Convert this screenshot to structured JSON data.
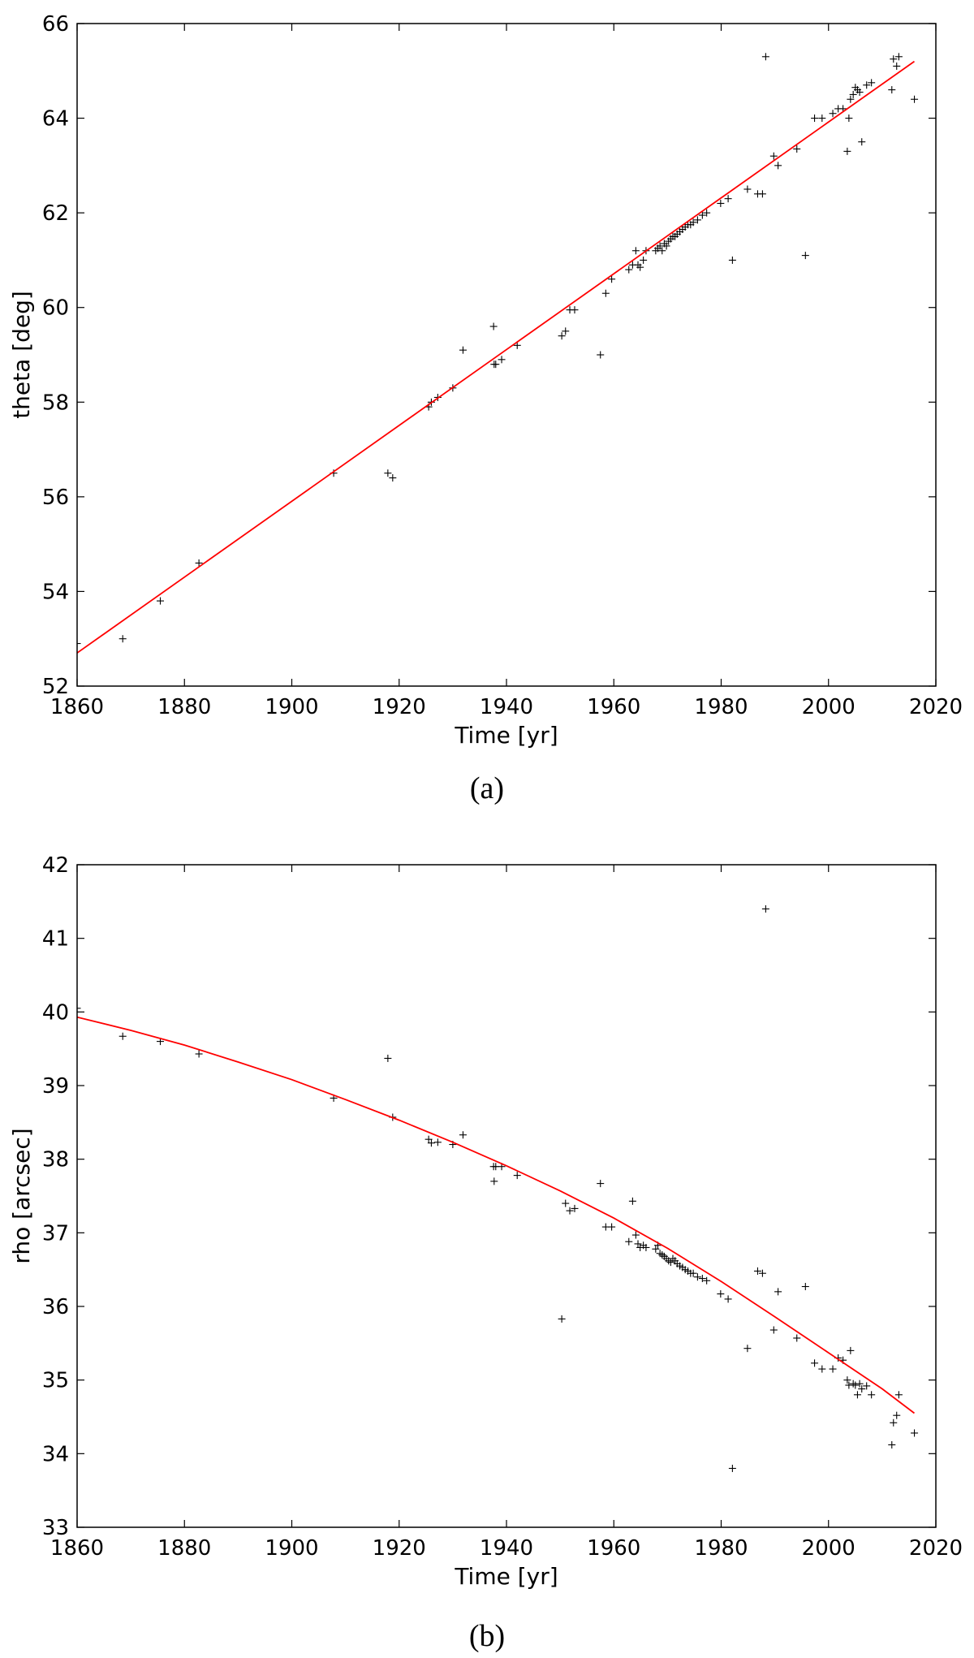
{
  "chart_data": [
    {
      "type": "scatter",
      "caption": "(a)",
      "xlabel": "Time [yr]",
      "ylabel": "theta [deg]",
      "xlim": [
        1860,
        2020
      ],
      "ylim": [
        52,
        66
      ],
      "xticks": [
        "1860",
        "1880",
        "1900",
        "1920",
        "1940",
        "1960",
        "1980",
        "2000",
        "2020"
      ],
      "yticks": [
        "52",
        "54",
        "56",
        "58",
        "60",
        "62",
        "64",
        "66"
      ],
      "grid": false,
      "fit_color": "#ff0000",
      "marker_color": "#000000",
      "series": [
        {
          "kind": "points",
          "marker": "+",
          "x": [
            1860.0,
            1868.5,
            1875.5,
            1882.7,
            1907.8,
            1917.9,
            1918.8,
            1925.5,
            1926.0,
            1927.2,
            1930.0,
            1931.9,
            1937.6,
            1937.7,
            1938.0,
            1939.1,
            1942.0,
            1950.3,
            1951.0,
            1951.8,
            1952.7,
            1957.5,
            1958.5,
            1959.6,
            1962.8,
            1963.5,
            1964.1,
            1964.5,
            1964.9,
            1965.5,
            1966.0,
            1967.8,
            1968.2,
            1968.6,
            1969.0,
            1969.4,
            1969.8,
            1970.2,
            1970.6,
            1971.0,
            1971.4,
            1971.8,
            1972.3,
            1972.8,
            1973.3,
            1973.8,
            1974.3,
            1974.8,
            1975.6,
            1976.5,
            1977.3,
            1979.9,
            1981.3,
            1982.1,
            1984.9,
            1986.8,
            1987.7,
            1988.3,
            1989.8,
            1990.6,
            1994.1,
            1995.7,
            1997.4,
            1998.8,
            2000.8,
            2001.8,
            2002.7,
            2003.5,
            2003.8,
            2004.1,
            2004.6,
            2005.0,
            2005.4,
            2005.8,
            2006.2,
            2007.1,
            2008.0,
            2011.8,
            2012.1,
            2012.7,
            2013.1,
            2016.0
          ],
          "y": [
            52.9,
            53.0,
            53.8,
            54.6,
            56.5,
            56.5,
            56.4,
            57.9,
            58.0,
            58.1,
            58.3,
            59.1,
            59.6,
            58.8,
            58.8,
            58.9,
            59.2,
            59.4,
            59.5,
            59.95,
            59.95,
            59.0,
            60.3,
            60.6,
            60.8,
            60.9,
            61.2,
            60.9,
            60.85,
            61.0,
            61.2,
            61.2,
            61.25,
            61.3,
            61.2,
            61.35,
            61.3,
            61.4,
            61.45,
            61.5,
            61.5,
            61.55,
            61.6,
            61.65,
            61.7,
            61.75,
            61.75,
            61.8,
            61.85,
            61.95,
            62.0,
            62.2,
            62.3,
            61.0,
            62.5,
            62.4,
            62.4,
            65.3,
            63.2,
            63.0,
            63.35,
            61.1,
            64.0,
            64.0,
            64.1,
            64.2,
            64.2,
            63.3,
            64.0,
            64.4,
            64.5,
            64.65,
            64.6,
            64.55,
            63.5,
            64.7,
            64.75,
            64.6,
            65.25,
            65.1,
            65.3,
            64.4
          ]
        },
        {
          "kind": "fit",
          "x": [
            1860,
            2016
          ],
          "y": [
            52.7,
            65.2
          ]
        }
      ]
    },
    {
      "type": "scatter",
      "caption": "(b)",
      "xlabel": "Time [yr]",
      "ylabel": "rho [arcsec]",
      "xlim": [
        1860,
        2020
      ],
      "ylim": [
        33,
        42
      ],
      "xticks": [
        "1860",
        "1880",
        "1900",
        "1920",
        "1940",
        "1960",
        "1980",
        "2000",
        "2020"
      ],
      "yticks": [
        "33",
        "34",
        "35",
        "36",
        "37",
        "38",
        "39",
        "40",
        "41",
        "42"
      ],
      "grid": false,
      "fit_color": "#ff0000",
      "marker_color": "#000000",
      "series": [
        {
          "kind": "points",
          "marker": "+",
          "x": [
            1860.0,
            1868.5,
            1875.5,
            1882.7,
            1907.8,
            1917.9,
            1918.8,
            1925.5,
            1926.0,
            1927.2,
            1930.0,
            1931.9,
            1937.6,
            1937.7,
            1938.0,
            1939.1,
            1942.0,
            1950.3,
            1951.0,
            1951.8,
            1952.7,
            1957.5,
            1958.5,
            1959.6,
            1962.8,
            1963.5,
            1964.1,
            1964.5,
            1964.9,
            1965.5,
            1966.0,
            1967.8,
            1968.2,
            1968.6,
            1969.0,
            1969.4,
            1969.8,
            1970.2,
            1970.6,
            1971.0,
            1971.4,
            1971.8,
            1972.3,
            1972.8,
            1973.3,
            1973.8,
            1974.3,
            1974.8,
            1975.6,
            1976.5,
            1977.3,
            1979.9,
            1981.3,
            1982.1,
            1984.9,
            1986.8,
            1987.7,
            1988.3,
            1989.8,
            1990.6,
            1994.1,
            1995.7,
            1997.4,
            1998.8,
            2000.8,
            2001.8,
            2002.7,
            2003.5,
            2003.8,
            2004.1,
            2004.6,
            2005.0,
            2005.4,
            2005.8,
            2006.2,
            2007.1,
            2008.0,
            2011.8,
            2012.1,
            2012.7,
            2013.1,
            2016.0
          ],
          "y": [
            40.05,
            39.67,
            39.6,
            39.43,
            38.83,
            39.37,
            38.57,
            38.27,
            38.22,
            38.23,
            38.2,
            38.33,
            37.9,
            37.7,
            37.9,
            37.9,
            37.78,
            35.83,
            37.4,
            37.3,
            37.33,
            37.67,
            37.08,
            37.08,
            36.88,
            37.43,
            36.97,
            36.85,
            36.8,
            36.83,
            36.8,
            36.78,
            36.83,
            36.72,
            36.7,
            36.68,
            36.65,
            36.62,
            36.6,
            36.65,
            36.62,
            36.58,
            36.55,
            36.53,
            36.5,
            36.48,
            36.45,
            36.45,
            36.4,
            36.38,
            36.35,
            36.17,
            36.1,
            33.8,
            35.43,
            36.48,
            36.45,
            41.4,
            35.68,
            36.2,
            35.57,
            36.27,
            35.23,
            35.15,
            35.15,
            35.3,
            35.27,
            35.0,
            34.93,
            35.4,
            34.95,
            34.93,
            34.8,
            34.95,
            34.88,
            34.92,
            34.8,
            34.12,
            34.42,
            34.52,
            34.8,
            34.28
          ]
        },
        {
          "kind": "fit",
          "x": [
            1860,
            1870,
            1880,
            1890,
            1900,
            1910,
            1920,
            1930,
            1940,
            1950,
            1960,
            1970,
            1980,
            1990,
            2000,
            2010,
            2016
          ],
          "y": [
            39.93,
            39.75,
            39.55,
            39.32,
            39.08,
            38.81,
            38.53,
            38.23,
            37.91,
            37.57,
            37.2,
            36.79,
            36.34,
            35.86,
            35.37,
            34.88,
            34.55
          ]
        }
      ]
    }
  ]
}
